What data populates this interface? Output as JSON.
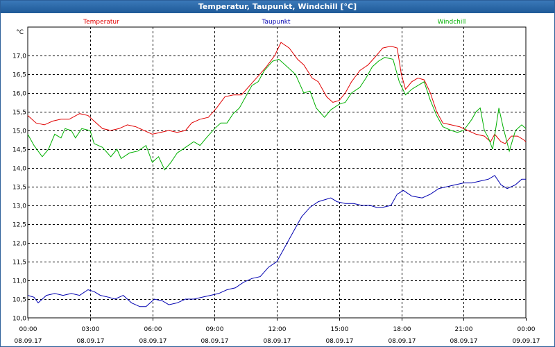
{
  "window": {
    "title": "Temperatur, Taupunkt, Windchill [°C]"
  },
  "chart_data": {
    "type": "line",
    "title": "Temperatur, Taupunkt, Windchill [°C]",
    "ylabel": "°C",
    "ylim": [
      10.0,
      17.5
    ],
    "yticks": [
      "17,0",
      "16,5",
      "16,0",
      "15,5",
      "15,0",
      "14,5",
      "14,0",
      "13,5",
      "13,0",
      "12,5",
      "12,0",
      "11,5",
      "11,0",
      "10,5",
      "10,0"
    ],
    "ytick_values": [
      17.0,
      16.5,
      16.0,
      15.5,
      15.0,
      14.5,
      14.0,
      13.5,
      13.0,
      12.5,
      12.0,
      11.5,
      11.0,
      10.5,
      10.0
    ],
    "xlim": [
      0,
      24
    ],
    "xticks": [
      {
        "x": 0,
        "time": "00:00",
        "date": "08.09.17"
      },
      {
        "x": 3,
        "time": "03:00",
        "date": "08.09.17"
      },
      {
        "x": 6,
        "time": "06:00",
        "date": "08.09.17"
      },
      {
        "x": 9,
        "time": "09:00",
        "date": "08.09.17"
      },
      {
        "x": 12,
        "time": "12:00",
        "date": "08.09.17"
      },
      {
        "x": 15,
        "time": "15:00",
        "date": "08.09.17"
      },
      {
        "x": 18,
        "time": "18:00",
        "date": "08.09.17"
      },
      {
        "x": 21,
        "time": "21:00",
        "date": "08.09.17"
      },
      {
        "x": 24,
        "time": "00:00",
        "date": "09.09.17"
      }
    ],
    "grid": true,
    "series": [
      {
        "name": "Temperatur",
        "color": "#e00000",
        "points": [
          [
            0,
            15.4
          ],
          [
            0.4,
            15.2
          ],
          [
            0.8,
            15.15
          ],
          [
            1.2,
            15.25
          ],
          [
            1.6,
            15.3
          ],
          [
            2.0,
            15.3
          ],
          [
            2.5,
            15.45
          ],
          [
            2.9,
            15.4
          ],
          [
            3.3,
            15.2
          ],
          [
            3.6,
            15.05
          ],
          [
            4.0,
            15.0
          ],
          [
            4.4,
            15.05
          ],
          [
            4.8,
            15.15
          ],
          [
            5.2,
            15.1
          ],
          [
            5.6,
            15.0
          ],
          [
            6.0,
            14.9
          ],
          [
            6.4,
            14.95
          ],
          [
            6.8,
            15.0
          ],
          [
            7.2,
            14.95
          ],
          [
            7.6,
            15.0
          ],
          [
            7.9,
            15.2
          ],
          [
            8.3,
            15.3
          ],
          [
            8.7,
            15.35
          ],
          [
            9.1,
            15.6
          ],
          [
            9.5,
            15.9
          ],
          [
            9.9,
            15.95
          ],
          [
            10.3,
            15.95
          ],
          [
            10.7,
            16.2
          ],
          [
            11.1,
            16.45
          ],
          [
            11.5,
            16.7
          ],
          [
            11.9,
            17.0
          ],
          [
            12.2,
            17.35
          ],
          [
            12.6,
            17.2
          ],
          [
            13.0,
            16.9
          ],
          [
            13.3,
            16.75
          ],
          [
            13.7,
            16.4
          ],
          [
            14.0,
            16.3
          ],
          [
            14.4,
            15.9
          ],
          [
            14.7,
            15.75
          ],
          [
            15.0,
            15.8
          ],
          [
            15.3,
            16.0
          ],
          [
            15.6,
            16.3
          ],
          [
            16.0,
            16.6
          ],
          [
            16.4,
            16.75
          ],
          [
            16.8,
            17.0
          ],
          [
            17.1,
            17.2
          ],
          [
            17.5,
            17.25
          ],
          [
            17.8,
            17.2
          ],
          [
            18.0,
            16.5
          ],
          [
            18.2,
            16.1
          ],
          [
            18.5,
            16.3
          ],
          [
            18.8,
            16.4
          ],
          [
            19.1,
            16.35
          ],
          [
            19.4,
            16.0
          ],
          [
            19.7,
            15.5
          ],
          [
            20.0,
            15.2
          ],
          [
            20.4,
            15.15
          ],
          [
            20.8,
            15.1
          ],
          [
            21.2,
            15.0
          ],
          [
            21.6,
            14.9
          ],
          [
            22.0,
            14.85
          ],
          [
            22.3,
            14.7
          ],
          [
            22.5,
            14.9
          ],
          [
            22.8,
            14.7
          ],
          [
            23.0,
            14.65
          ],
          [
            23.3,
            14.85
          ],
          [
            23.6,
            14.85
          ],
          [
            23.9,
            14.75
          ],
          [
            24.0,
            14.7
          ]
        ]
      },
      {
        "name": "Taupunkt",
        "color": "#0000b0",
        "points": [
          [
            0,
            10.6
          ],
          [
            0.3,
            10.55
          ],
          [
            0.5,
            10.4
          ],
          [
            0.9,
            10.6
          ],
          [
            1.3,
            10.65
          ],
          [
            1.7,
            10.6
          ],
          [
            2.1,
            10.65
          ],
          [
            2.5,
            10.6
          ],
          [
            2.9,
            10.75
          ],
          [
            3.2,
            10.7
          ],
          [
            3.5,
            10.6
          ],
          [
            3.9,
            10.55
          ],
          [
            4.2,
            10.5
          ],
          [
            4.6,
            10.6
          ],
          [
            5.0,
            10.4
          ],
          [
            5.4,
            10.3
          ],
          [
            5.7,
            10.3
          ],
          [
            6.1,
            10.5
          ],
          [
            6.5,
            10.45
          ],
          [
            6.8,
            10.35
          ],
          [
            7.2,
            10.4
          ],
          [
            7.6,
            10.5
          ],
          [
            8.0,
            10.5
          ],
          [
            8.4,
            10.55
          ],
          [
            8.8,
            10.6
          ],
          [
            9.2,
            10.65
          ],
          [
            9.6,
            10.75
          ],
          [
            10.0,
            10.8
          ],
          [
            10.4,
            10.95
          ],
          [
            10.8,
            11.05
          ],
          [
            11.2,
            11.1
          ],
          [
            11.6,
            11.35
          ],
          [
            12.0,
            11.5
          ],
          [
            12.4,
            11.9
          ],
          [
            12.8,
            12.3
          ],
          [
            13.2,
            12.7
          ],
          [
            13.6,
            12.95
          ],
          [
            14.0,
            13.1
          ],
          [
            14.3,
            13.15
          ],
          [
            14.6,
            13.2
          ],
          [
            14.9,
            13.1
          ],
          [
            15.3,
            13.05
          ],
          [
            15.7,
            13.05
          ],
          [
            16.1,
            13.0
          ],
          [
            16.5,
            13.0
          ],
          [
            16.8,
            12.95
          ],
          [
            17.1,
            12.95
          ],
          [
            17.5,
            13.0
          ],
          [
            17.8,
            13.3
          ],
          [
            18.1,
            13.4
          ],
          [
            18.5,
            13.25
          ],
          [
            19.0,
            13.2
          ],
          [
            19.4,
            13.3
          ],
          [
            19.8,
            13.45
          ],
          [
            20.2,
            13.5
          ],
          [
            20.6,
            13.55
          ],
          [
            21.0,
            13.6
          ],
          [
            21.4,
            13.6
          ],
          [
            21.8,
            13.65
          ],
          [
            22.2,
            13.7
          ],
          [
            22.5,
            13.8
          ],
          [
            22.8,
            13.55
          ],
          [
            23.1,
            13.45
          ],
          [
            23.5,
            13.55
          ],
          [
            23.8,
            13.7
          ],
          [
            24.0,
            13.7
          ]
        ]
      },
      {
        "name": "Windchill",
        "color": "#00b000",
        "points": [
          [
            0,
            14.9
          ],
          [
            0.3,
            14.6
          ],
          [
            0.7,
            14.3
          ],
          [
            1.0,
            14.5
          ],
          [
            1.3,
            14.9
          ],
          [
            1.6,
            14.8
          ],
          [
            1.8,
            15.05
          ],
          [
            2.1,
            15.0
          ],
          [
            2.3,
            14.8
          ],
          [
            2.6,
            15.05
          ],
          [
            3.0,
            15.0
          ],
          [
            3.2,
            14.65
          ],
          [
            3.6,
            14.55
          ],
          [
            4.0,
            14.3
          ],
          [
            4.3,
            14.5
          ],
          [
            4.5,
            14.25
          ],
          [
            4.9,
            14.4
          ],
          [
            5.3,
            14.45
          ],
          [
            5.7,
            14.6
          ],
          [
            6.0,
            14.15
          ],
          [
            6.3,
            14.3
          ],
          [
            6.6,
            13.95
          ],
          [
            6.9,
            14.15
          ],
          [
            7.2,
            14.4
          ],
          [
            7.6,
            14.55
          ],
          [
            8.0,
            14.7
          ],
          [
            8.3,
            14.6
          ],
          [
            8.6,
            14.8
          ],
          [
            9.0,
            15.05
          ],
          [
            9.3,
            15.2
          ],
          [
            9.6,
            15.2
          ],
          [
            9.9,
            15.45
          ],
          [
            10.2,
            15.6
          ],
          [
            10.5,
            15.9
          ],
          [
            10.8,
            16.2
          ],
          [
            11.1,
            16.3
          ],
          [
            11.4,
            16.6
          ],
          [
            11.8,
            16.85
          ],
          [
            12.1,
            16.9
          ],
          [
            12.5,
            16.7
          ],
          [
            12.9,
            16.5
          ],
          [
            13.3,
            16.0
          ],
          [
            13.6,
            16.05
          ],
          [
            13.9,
            15.6
          ],
          [
            14.3,
            15.35
          ],
          [
            14.6,
            15.55
          ],
          [
            15.0,
            15.7
          ],
          [
            15.3,
            15.75
          ],
          [
            15.6,
            16.0
          ],
          [
            16.0,
            16.15
          ],
          [
            16.3,
            16.4
          ],
          [
            16.6,
            16.7
          ],
          [
            16.9,
            16.85
          ],
          [
            17.2,
            16.95
          ],
          [
            17.6,
            16.9
          ],
          [
            17.9,
            16.3
          ],
          [
            18.2,
            15.95
          ],
          [
            18.5,
            16.1
          ],
          [
            18.8,
            16.2
          ],
          [
            19.1,
            16.3
          ],
          [
            19.4,
            15.8
          ],
          [
            19.7,
            15.4
          ],
          [
            20.0,
            15.1
          ],
          [
            20.4,
            15.0
          ],
          [
            20.7,
            14.95
          ],
          [
            21.0,
            15.0
          ],
          [
            21.4,
            15.3
          ],
          [
            21.6,
            15.5
          ],
          [
            21.8,
            15.6
          ],
          [
            22.0,
            15.0
          ],
          [
            22.2,
            14.8
          ],
          [
            22.4,
            14.5
          ],
          [
            22.7,
            15.6
          ],
          [
            22.9,
            15.1
          ],
          [
            23.2,
            14.45
          ],
          [
            23.5,
            15.0
          ],
          [
            23.8,
            15.15
          ],
          [
            24.0,
            15.05
          ]
        ]
      }
    ]
  }
}
